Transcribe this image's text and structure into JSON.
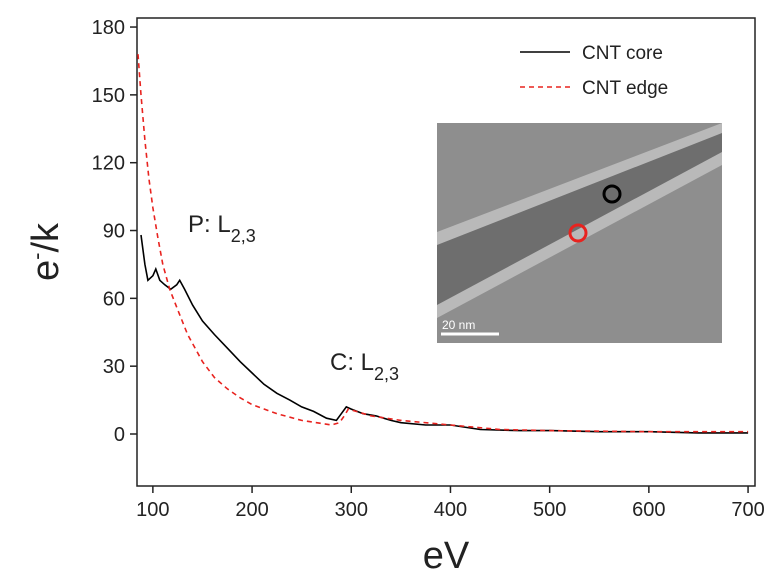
{
  "chart_data": {
    "type": "line",
    "xlabel": "eV",
    "ylabel": {
      "base": "e",
      "sup": "-",
      "rest": "/k"
    },
    "xlim": [
      84,
      707
    ],
    "ylim": [
      -23,
      184
    ],
    "xticks": [
      100,
      200,
      300,
      400,
      500,
      600,
      700
    ],
    "yticks": [
      0,
      30,
      60,
      90,
      120,
      150,
      180
    ],
    "legend": "top-right",
    "series": [
      {
        "name": "CNT core",
        "color": "#000000",
        "dash": "solid",
        "x": [
          88,
          92,
          95,
          100,
          103,
          107,
          112,
          118,
          124,
          127,
          132,
          140,
          150,
          162,
          175,
          188,
          200,
          212,
          225,
          238,
          250,
          262,
          275,
          285,
          290,
          295,
          300,
          312,
          325,
          340,
          350,
          375,
          400,
          430,
          470,
          500,
          550,
          600,
          650,
          700
        ],
        "values": [
          88,
          75,
          68,
          70,
          73,
          68,
          66,
          64,
          66,
          68,
          64,
          57,
          50,
          44,
          38,
          32,
          27,
          22,
          18,
          15,
          12,
          10,
          7,
          6,
          9,
          12,
          11,
          9,
          8,
          6,
          5,
          4,
          4,
          2,
          1.5,
          1.5,
          1,
          1,
          0.5,
          0.5
        ]
      },
      {
        "name": "CNT edge",
        "color": "#e8231f",
        "dash": "dashed",
        "x": [
          85,
          88,
          92,
          96,
          100,
          105,
          110,
          117,
          125,
          135,
          150,
          162,
          175,
          188,
          200,
          225,
          250,
          265,
          280,
          288,
          293,
          297,
          305,
          320,
          350,
          400,
          450,
          500,
          600,
          700
        ],
        "values": [
          168,
          150,
          130,
          113,
          100,
          87,
          75,
          64,
          55,
          44,
          32,
          25,
          20,
          16,
          13,
          9,
          6,
          5,
          4,
          5,
          8,
          11,
          10,
          8,
          6,
          4,
          2,
          1.5,
          1,
          1
        ]
      }
    ],
    "annotations": [
      {
        "text": "P: L",
        "sub": "2,3"
      },
      {
        "text": "C: L",
        "sub": "2,3"
      }
    ],
    "inset": {
      "scale_label": "20 nm"
    }
  }
}
